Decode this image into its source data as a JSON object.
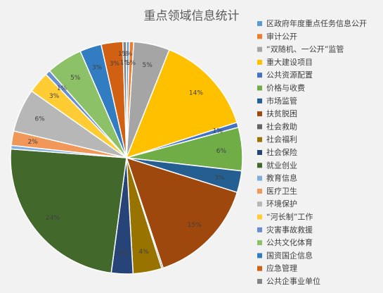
{
  "chart_data": {
    "type": "pie",
    "title": "重点领域信息统计",
    "legend_position": "right",
    "slices": [
      {
        "label": "区政府年度重点任务信息公开",
        "value": 0.4,
        "data_label": "",
        "color": "#5b9bd5"
      },
      {
        "label": "审计公开",
        "value": 0.6,
        "data_label": "1%",
        "color": "#ed7d31"
      },
      {
        "label": "“双随机、一公开”监管",
        "value": 5,
        "data_label": "5%",
        "color": "#a5a5a5"
      },
      {
        "label": "重大建设项目",
        "value": 14,
        "data_label": "14%",
        "color": "#ffc000"
      },
      {
        "label": "公共资源配置",
        "value": 0.7,
        "data_label": "1%",
        "color": "#4472c4"
      },
      {
        "label": "价格与收费",
        "value": 6,
        "data_label": "6%",
        "color": "#70ad47"
      },
      {
        "label": "市场监管",
        "value": 3,
        "data_label": "3%",
        "color": "#255e91"
      },
      {
        "label": "扶贫脱困",
        "value": 15,
        "data_label": "15%",
        "color": "#9e480e"
      },
      {
        "label": "社会救助",
        "value": 0.2,
        "data_label": "",
        "color": "#636363"
      },
      {
        "label": "社会福利",
        "value": 4,
        "data_label": "4%",
        "color": "#997300"
      },
      {
        "label": "社会保险",
        "value": 3,
        "data_label": "3%",
        "color": "#264478"
      },
      {
        "label": "就业创业",
        "value": 24,
        "data_label": "24%",
        "color": "#43682b"
      },
      {
        "label": "教育信息",
        "value": 0.5,
        "data_label": "",
        "color": "#7cafdd"
      },
      {
        "label": "医疗卫生",
        "value": 2,
        "data_label": "2%",
        "color": "#f1975a"
      },
      {
        "label": "环境保护",
        "value": 6,
        "data_label": "6%",
        "color": "#b7b7b7"
      },
      {
        "label": "“河长制”工作",
        "value": 3,
        "data_label": "3%",
        "color": "#ffcd33"
      },
      {
        "label": "灾害事故救援",
        "value": 0.7,
        "data_label": "1%",
        "color": "#698ed0"
      },
      {
        "label": "公共文化体育",
        "value": 5,
        "data_label": "5%",
        "color": "#8cc168"
      },
      {
        "label": "国资国企信息",
        "value": 3,
        "data_label": "3%",
        "color": "#327dc2"
      },
      {
        "label": "应急管理",
        "value": 3,
        "data_label": "3%",
        "color": "#d26012"
      },
      {
        "label": "公共企事业单位",
        "value": 0.5,
        "data_label": "1%",
        "color": "#848484"
      }
    ],
    "extra_labels": [
      "1%",
      "1%"
    ]
  }
}
